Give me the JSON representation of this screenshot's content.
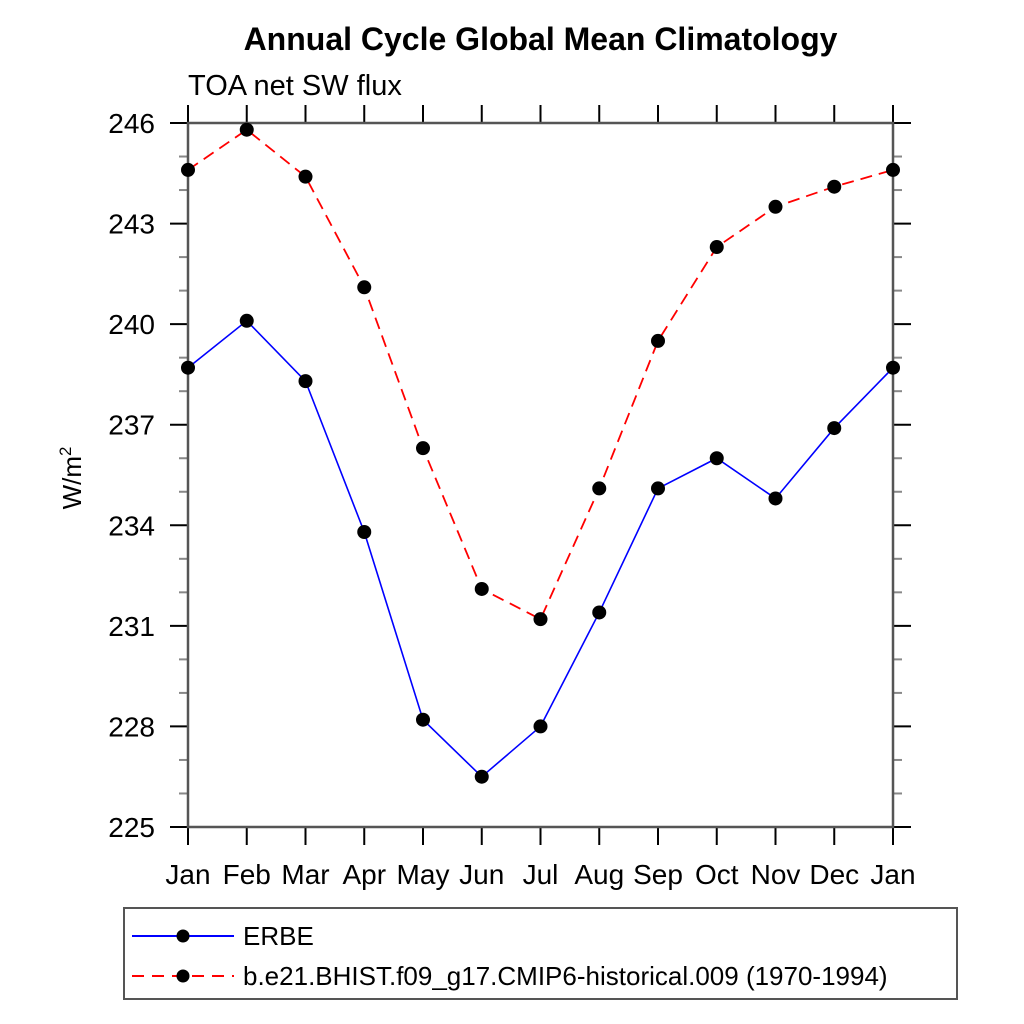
{
  "page": {
    "background": "#ffffff"
  },
  "chart_data": {
    "type": "line",
    "title": "Annual Cycle Global Mean Climatology",
    "subtitle": "TOA net SW flux",
    "ylabel": {
      "base": "W/m",
      "sup": "2"
    },
    "categories": [
      "Jan",
      "Feb",
      "Mar",
      "Apr",
      "May",
      "Jun",
      "Jul",
      "Aug",
      "Sep",
      "Oct",
      "Nov",
      "Dec",
      "Jan"
    ],
    "ylim": [
      225,
      246
    ],
    "yticks_major": [
      225,
      228,
      231,
      234,
      237,
      240,
      243,
      246
    ],
    "ytick_minor_step": 1,
    "grid": false,
    "legend_position": "bottom-left-box",
    "axis_color": "#555555",
    "tick_color": "#000000",
    "minor_tick_color": "#888888",
    "marker_color": "#000000",
    "series": [
      {
        "name": "ERBE",
        "color": "#0000ff",
        "line_style": "solid",
        "marker": "filled-circle",
        "values": [
          238.7,
          240.1,
          238.3,
          233.8,
          228.2,
          226.5,
          228.0,
          231.4,
          235.1,
          236.0,
          234.8,
          236.9,
          238.7
        ]
      },
      {
        "name": "b.e21.BHIST.f09_g17.CMIP6-historical.009 (1970-1994)",
        "color": "#ff0000",
        "line_style": "dashed",
        "marker": "filled-circle",
        "values": [
          244.6,
          245.8,
          244.4,
          241.1,
          236.3,
          232.1,
          231.2,
          235.1,
          239.5,
          242.3,
          243.5,
          244.1,
          244.6
        ]
      }
    ]
  }
}
